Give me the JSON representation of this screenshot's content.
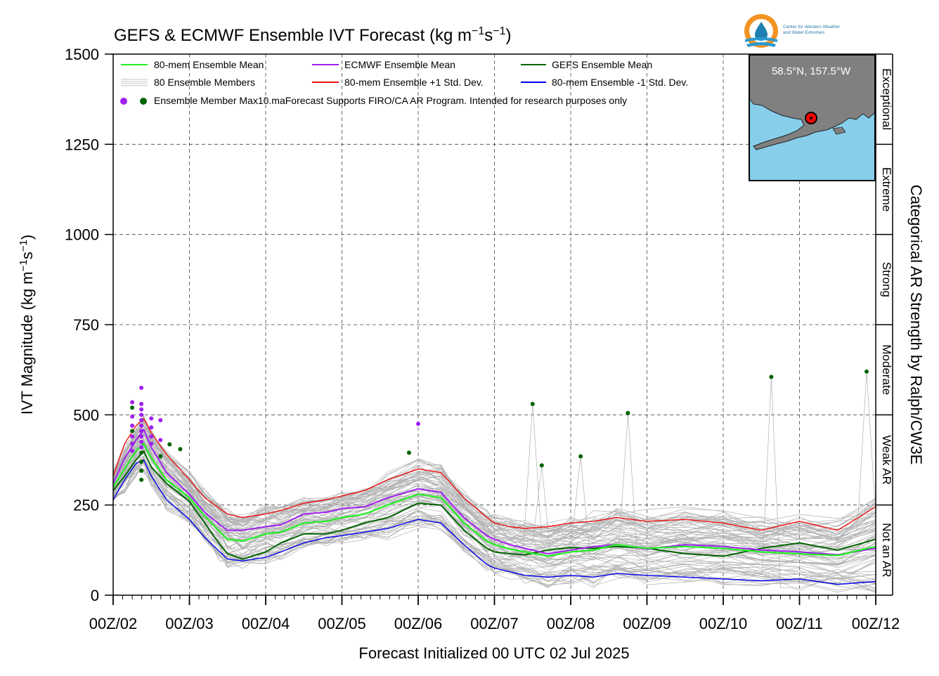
{
  "logo": {
    "text_line1": "Center for Western Weather",
    "text_line2": "and Water Extremes",
    "colors": {
      "ring": "#f39322",
      "drop": "#1f7fb0",
      "waves": "#2b9ad1"
    }
  },
  "inset_map": {
    "label": "58.5°N, 157.5°W",
    "colors": {
      "ocean": "#87ceeb",
      "land": "#808080",
      "marker": "#ff0000"
    }
  },
  "chart_data": {
    "type": "line",
    "title_main": "GEFS & ECMWF Ensemble IVT Forecast (kg m",
    "title_sup1": "−1",
    "title_mid": "s",
    "title_sup2": "−1",
    "title_end": ")",
    "ylabel_main": "IVT Magnitude (kg m",
    "ylabel_sup1": "−1",
    "ylabel_mid": "s",
    "ylabel_sup2": "−1",
    "ylabel_end": ")",
    "xlabel": "Forecast Initialized 00 UTC 02 Jul 2025",
    "right_label": "Categorical AR Strength by Ralph/CW3E",
    "ylim": [
      0,
      1500
    ],
    "yticks": [
      0,
      250,
      500,
      750,
      1000,
      1250,
      1500
    ],
    "ytick_labels": [
      "0",
      "250",
      "500",
      "750",
      "1000",
      "1250",
      "1500"
    ],
    "xlim": [
      0,
      10
    ],
    "xtick_labels": [
      "00Z/02",
      "00Z/03",
      "00Z/04",
      "00Z/05",
      "00Z/06",
      "00Z/07",
      "00Z/08",
      "00Z/09",
      "00Z/10",
      "00Z/11",
      "00Z/12"
    ],
    "grid": true,
    "categories": [
      {
        "label": "Not an AR",
        "min": 0,
        "max": 250
      },
      {
        "label": "Weak AR",
        "min": 250,
        "max": 500
      },
      {
        "label": "Moderate",
        "min": 500,
        "max": 750
      },
      {
        "label": "Strong",
        "min": 750,
        "max": 1000
      },
      {
        "label": "Extreme",
        "min": 1000,
        "max": 1250
      },
      {
        "label": "Exceptional",
        "min": 1250,
        "max": 1500
      }
    ],
    "legend": {
      "placement": "top-left",
      "items": [
        {
          "label": "80-mem Ensemble Mean",
          "color": "#22ee22"
        },
        {
          "label": "ECMWF Ensemble Mean",
          "color": "#a020f0"
        },
        {
          "label": "GEFS Ensemble Mean",
          "color": "#006400"
        },
        {
          "label": "80 Ensemble Members",
          "color": "#b0b0b0"
        },
        {
          "label": "80-mem Ensemble +1 Std. Dev.",
          "color": "#ee1111"
        },
        {
          "label": "80-mem Ensemble -1 Std. Dev.",
          "color": "#0000ee"
        }
      ],
      "dots_label": "Ensemble Member Max10.ma",
      "note": "Forecast Supports FIRO/CA AR Program. Intended for research purposes only",
      "dot_colors": [
        "#a020f0",
        "#006400"
      ]
    },
    "series": [
      {
        "name": "80-mem Ensemble Mean",
        "color": "#22ee22",
        "width": 2.2,
        "x": [
          0,
          0.15,
          0.3,
          0.4,
          0.5,
          0.7,
          1.0,
          1.2,
          1.4,
          1.5,
          1.7,
          2.0,
          2.2,
          2.5,
          2.8,
          3.0,
          3.3,
          3.6,
          4.0,
          4.3,
          4.6,
          4.9,
          5.0,
          5.2,
          5.4,
          5.7,
          6.0,
          6.3,
          6.6,
          7.0,
          7.5,
          8.0,
          8.5,
          9.0,
          9.5,
          10.0
        ],
        "y": [
          300,
          350,
          400,
          420,
          380,
          320,
          270,
          220,
          175,
          155,
          150,
          170,
          175,
          200,
          205,
          215,
          225,
          250,
          280,
          270,
          200,
          150,
          140,
          128,
          120,
          108,
          120,
          125,
          140,
          130,
          135,
          130,
          120,
          115,
          110,
          135
        ]
      },
      {
        "name": "ECMWF Ensemble Mean",
        "color": "#a020f0",
        "width": 2.0,
        "x": [
          0,
          0.15,
          0.3,
          0.4,
          0.5,
          0.7,
          1.0,
          1.2,
          1.4,
          1.5,
          1.7,
          2.0,
          2.2,
          2.5,
          2.8,
          3.0,
          3.3,
          3.6,
          4.0,
          4.3,
          4.6,
          4.9,
          5.0,
          5.2,
          5.4,
          5.7,
          6.0,
          6.3,
          6.6,
          7.0,
          7.5,
          8.0,
          8.5,
          9.0,
          9.5,
          10.0
        ],
        "y": [
          310,
          380,
          430,
          460,
          410,
          340,
          280,
          230,
          195,
          180,
          180,
          190,
          195,
          225,
          230,
          240,
          245,
          270,
          295,
          285,
          215,
          165,
          155,
          140,
          130,
          115,
          125,
          135,
          140,
          128,
          140,
          135,
          125,
          120,
          112,
          130
        ]
      },
      {
        "name": "GEFS Ensemble Mean",
        "color": "#006400",
        "width": 2.0,
        "x": [
          0,
          0.15,
          0.3,
          0.4,
          0.5,
          0.7,
          1.0,
          1.2,
          1.4,
          1.5,
          1.7,
          2.0,
          2.2,
          2.5,
          2.8,
          3.0,
          3.3,
          3.6,
          4.0,
          4.3,
          4.6,
          4.9,
          5.0,
          5.2,
          5.4,
          5.7,
          6.0,
          6.3,
          6.6,
          7.0,
          7.5,
          8.0,
          8.5,
          9.0,
          9.5,
          10.0
        ],
        "y": [
          290,
          330,
          375,
          400,
          355,
          310,
          260,
          200,
          140,
          115,
          100,
          120,
          145,
          170,
          170,
          180,
          200,
          215,
          255,
          250,
          180,
          130,
          120,
          115,
          112,
          125,
          132,
          130,
          135,
          130,
          115,
          108,
          130,
          145,
          125,
          155
        ]
      },
      {
        "name": "80-mem Ensemble +1 Std. Dev.",
        "color": "#ee1111",
        "width": 1.4,
        "x": [
          0,
          0.15,
          0.3,
          0.4,
          0.5,
          0.7,
          1.0,
          1.2,
          1.4,
          1.5,
          1.7,
          2.0,
          2.2,
          2.5,
          2.8,
          3.0,
          3.3,
          3.6,
          4.0,
          4.3,
          4.6,
          4.9,
          5.0,
          5.2,
          5.4,
          5.7,
          6.0,
          6.3,
          6.6,
          7.0,
          7.5,
          8.0,
          8.5,
          9.0,
          9.5,
          10.0
        ],
        "y": [
          330,
          420,
          470,
          490,
          450,
          390,
          320,
          270,
          240,
          225,
          215,
          225,
          235,
          255,
          265,
          275,
          290,
          320,
          350,
          340,
          270,
          215,
          200,
          190,
          185,
          190,
          200,
          205,
          215,
          205,
          210,
          200,
          180,
          205,
          180,
          245
        ]
      },
      {
        "name": "80-mem Ensemble -1 Std. Dev.",
        "color": "#0000ee",
        "width": 1.4,
        "x": [
          0,
          0.15,
          0.3,
          0.4,
          0.5,
          0.7,
          1.0,
          1.2,
          1.4,
          1.5,
          1.7,
          2.0,
          2.2,
          2.5,
          2.8,
          3.0,
          3.3,
          3.6,
          4.0,
          4.3,
          4.6,
          4.9,
          5.0,
          5.2,
          5.4,
          5.7,
          6.0,
          6.3,
          6.6,
          7.0,
          7.5,
          8.0,
          8.5,
          9.0,
          9.5,
          10.0
        ],
        "y": [
          265,
          320,
          365,
          375,
          330,
          265,
          210,
          160,
          120,
          100,
          95,
          105,
          120,
          145,
          160,
          165,
          175,
          185,
          210,
          200,
          140,
          85,
          75,
          65,
          55,
          50,
          55,
          50,
          60,
          55,
          50,
          45,
          40,
          45,
          30,
          38
        ]
      }
    ],
    "max_markers": [
      {
        "x": 0.25,
        "y": 535,
        "color": "#a020f0"
      },
      {
        "x": 0.25,
        "y": 495,
        "color": "#a020f0"
      },
      {
        "x": 0.25,
        "y": 470,
        "color": "#a020f0"
      },
      {
        "x": 0.25,
        "y": 440,
        "color": "#a020f0"
      },
      {
        "x": 0.25,
        "y": 420,
        "color": "#a020f0"
      },
      {
        "x": 0.25,
        "y": 400,
        "color": "#a020f0"
      },
      {
        "x": 0.25,
        "y": 520,
        "color": "#006400"
      },
      {
        "x": 0.25,
        "y": 455,
        "color": "#006400"
      },
      {
        "x": 0.37,
        "y": 575,
        "color": "#a020f0"
      },
      {
        "x": 0.37,
        "y": 530,
        "color": "#a020f0"
      },
      {
        "x": 0.37,
        "y": 515,
        "color": "#a020f0"
      },
      {
        "x": 0.37,
        "y": 500,
        "color": "#a020f0"
      },
      {
        "x": 0.37,
        "y": 485,
        "color": "#a020f0"
      },
      {
        "x": 0.37,
        "y": 470,
        "color": "#a020f0"
      },
      {
        "x": 0.37,
        "y": 455,
        "color": "#a020f0"
      },
      {
        "x": 0.37,
        "y": 440,
        "color": "#a020f0"
      },
      {
        "x": 0.37,
        "y": 425,
        "color": "#a020f0"
      },
      {
        "x": 0.37,
        "y": 410,
        "color": "#a020f0"
      },
      {
        "x": 0.37,
        "y": 395,
        "color": "#006400"
      },
      {
        "x": 0.37,
        "y": 370,
        "color": "#006400"
      },
      {
        "x": 0.37,
        "y": 345,
        "color": "#006400"
      },
      {
        "x": 0.37,
        "y": 320,
        "color": "#006400"
      },
      {
        "x": 0.5,
        "y": 490,
        "color": "#a020f0"
      },
      {
        "x": 0.5,
        "y": 465,
        "color": "#a020f0"
      },
      {
        "x": 0.5,
        "y": 440,
        "color": "#a020f0"
      },
      {
        "x": 0.5,
        "y": 420,
        "color": "#a020f0"
      },
      {
        "x": 0.62,
        "y": 485,
        "color": "#a020f0"
      },
      {
        "x": 0.62,
        "y": 430,
        "color": "#a020f0"
      },
      {
        "x": 0.62,
        "y": 385,
        "color": "#006400"
      },
      {
        "x": 0.74,
        "y": 418,
        "color": "#006400"
      },
      {
        "x": 0.88,
        "y": 405,
        "color": "#006400"
      },
      {
        "x": 3.88,
        "y": 395,
        "color": "#006400"
      },
      {
        "x": 4.0,
        "y": 475,
        "color": "#a020f0"
      },
      {
        "x": 5.5,
        "y": 530,
        "color": "#006400"
      },
      {
        "x": 5.62,
        "y": 360,
        "color": "#006400"
      },
      {
        "x": 6.13,
        "y": 385,
        "color": "#006400"
      },
      {
        "x": 6.75,
        "y": 505,
        "color": "#006400"
      },
      {
        "x": 8.63,
        "y": 605,
        "color": "#006400"
      },
      {
        "x": 9.88,
        "y": 620,
        "color": "#006400"
      }
    ]
  }
}
